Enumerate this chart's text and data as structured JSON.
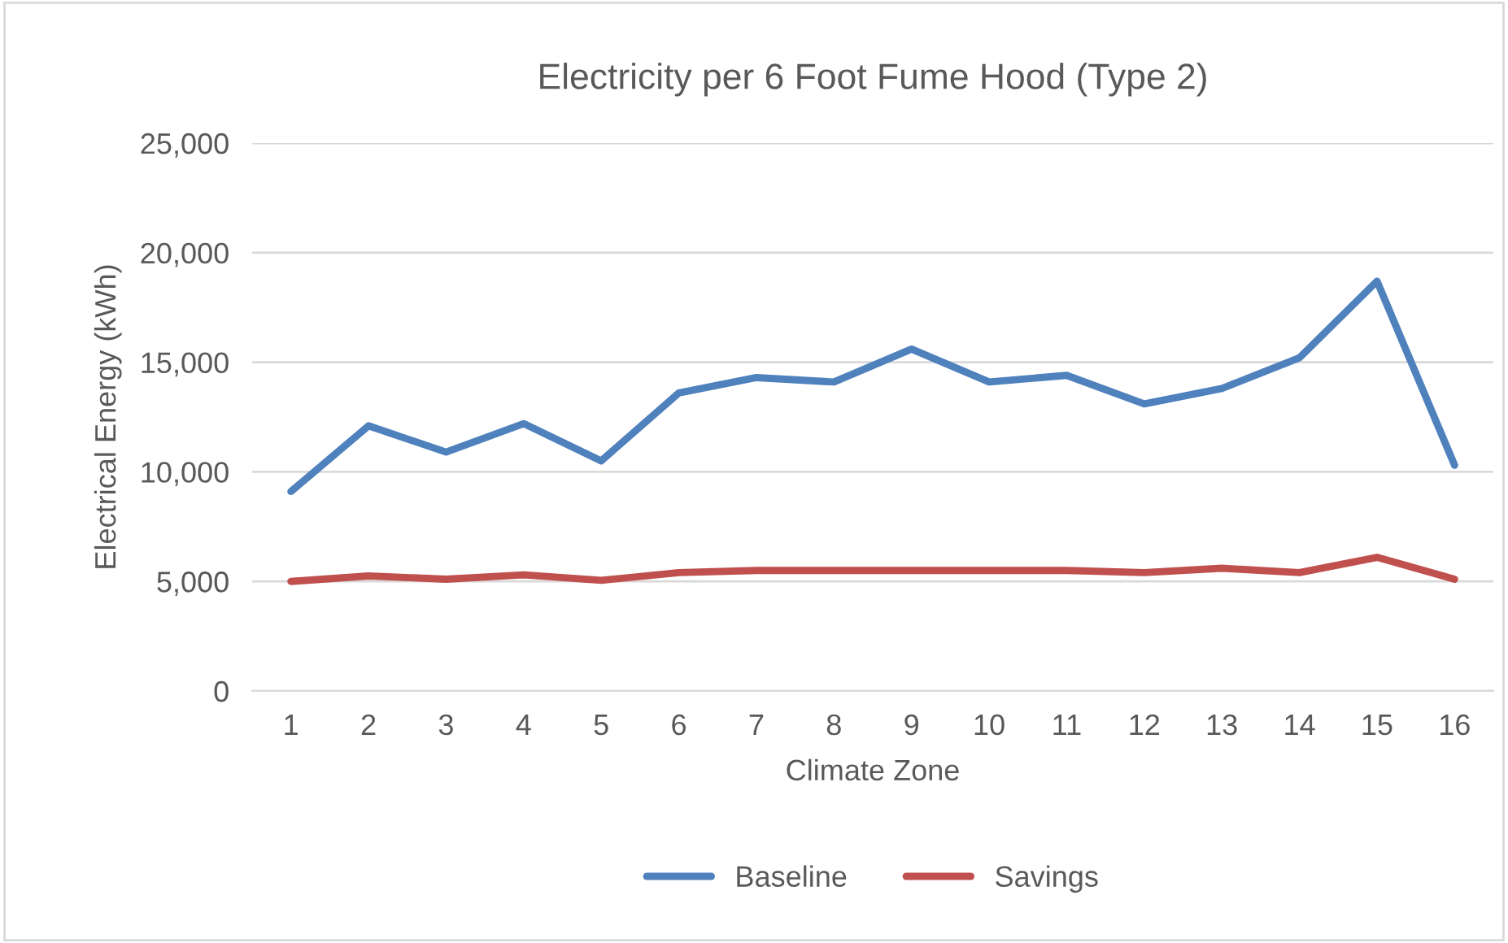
{
  "chart_data": {
    "type": "line",
    "title": "Electricity per 6 Foot Fume Hood (Type 2)",
    "xlabel": "Climate Zone",
    "ylabel": "Electrical Energy (kWh)",
    "categories": [
      "1",
      "2",
      "3",
      "4",
      "5",
      "6",
      "7",
      "8",
      "9",
      "10",
      "11",
      "12",
      "13",
      "14",
      "15",
      "16"
    ],
    "series": [
      {
        "name": "Baseline",
        "color": "#4f81bd",
        "values": [
          9100,
          12100,
          10900,
          12200,
          10500,
          13600,
          14300,
          14100,
          15600,
          14100,
          14400,
          13100,
          13800,
          15200,
          18700,
          10300
        ]
      },
      {
        "name": "Savings",
        "color": "#c0504d",
        "values": [
          5000,
          5250,
          5100,
          5300,
          5050,
          5400,
          5500,
          5500,
          5500,
          5500,
          5500,
          5400,
          5600,
          5400,
          6100,
          5100
        ]
      }
    ],
    "ylim": [
      0,
      25000
    ],
    "yticks": [
      {
        "value": 0,
        "label": "0"
      },
      {
        "value": 5000,
        "label": "5,000"
      },
      {
        "value": 10000,
        "label": "10,000"
      },
      {
        "value": 15000,
        "label": "15,000"
      },
      {
        "value": 20000,
        "label": "20,000"
      },
      {
        "value": 25000,
        "label": "25,000"
      }
    ],
    "grid": "y",
    "legend": "bottom",
    "marker": "none",
    "line_style": "solid"
  }
}
